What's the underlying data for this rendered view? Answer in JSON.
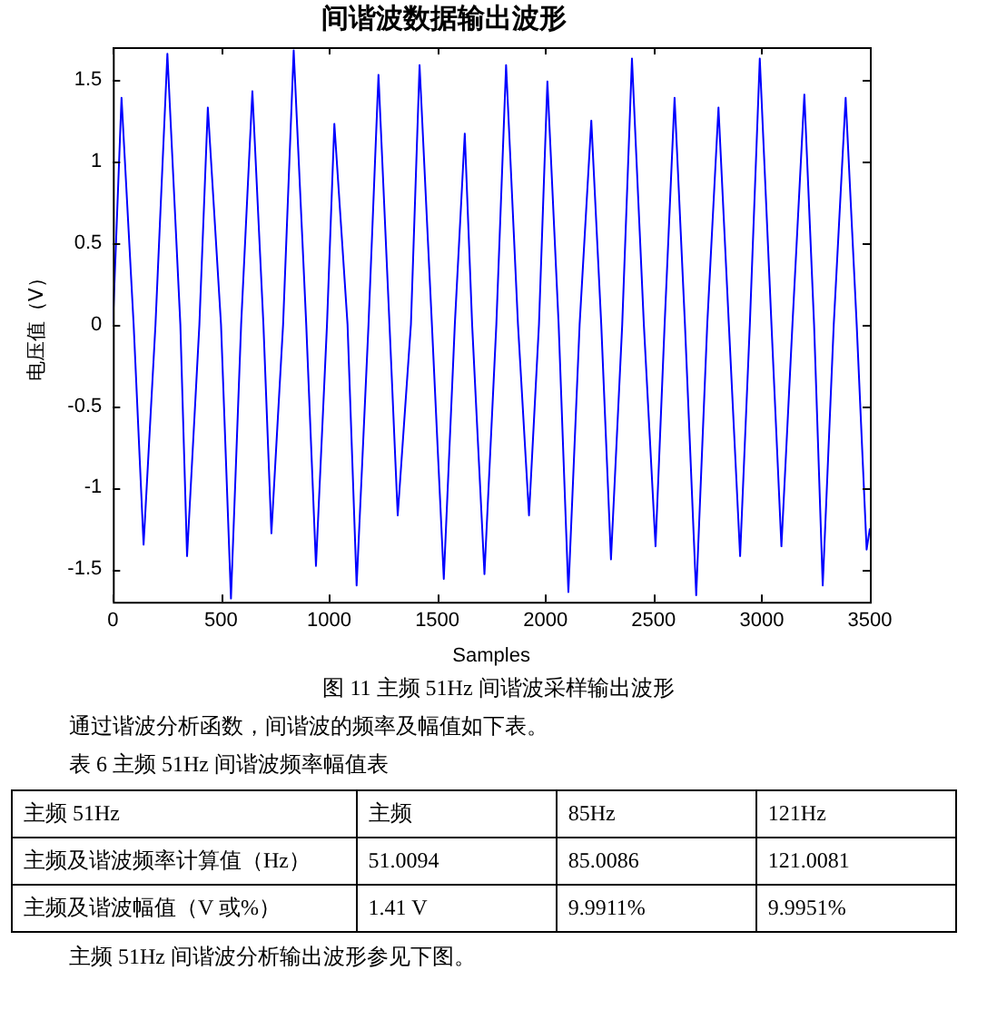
{
  "chart_data": {
    "type": "line",
    "title": "间谐波数据输出波形",
    "xlabel": "Samples",
    "ylabel": "电压值（V）",
    "xlim": [
      0,
      3500
    ],
    "xticks": [
      0,
      500,
      1000,
      1500,
      2000,
      2500,
      3000,
      3500
    ],
    "ylim": [
      -1.7,
      1.7
    ],
    "yticks": [
      -1.5,
      -1,
      -0.5,
      0,
      0.5,
      1,
      1.5
    ],
    "grid": false,
    "legend": false,
    "marker": "none",
    "line_style": "solid",
    "x": [
      0,
      40,
      96,
      142,
      197,
      252,
      312,
      343,
      400,
      439,
      500,
      546,
      593,
      645,
      696,
      733,
      787,
      836,
      894,
      939,
      990,
      1024,
      1085,
      1127,
      1182,
      1228,
      1279,
      1317,
      1378,
      1418,
      1475,
      1530,
      1581,
      1627,
      1661,
      1718,
      1773,
      1818,
      1873,
      1924,
      1970,
      2009,
      2061,
      2106,
      2158,
      2212,
      2258,
      2303,
      2355,
      2400,
      2455,
      2509,
      2551,
      2597,
      2645,
      2697,
      2748,
      2800,
      2848,
      2900,
      2945,
      2991,
      3045,
      3091,
      3142,
      3197,
      3242,
      3282,
      3333,
      3388,
      3439,
      3485,
      3500
    ],
    "series": [
      {
        "color": "#0000ff",
        "values": [
          0,
          1.39,
          0,
          -1.35,
          0,
          1.66,
          0,
          -1.42,
          0,
          1.33,
          0,
          -1.68,
          0,
          1.43,
          0,
          -1.28,
          0,
          1.68,
          0,
          -1.48,
          0,
          1.23,
          0,
          -1.6,
          0,
          1.53,
          0,
          -1.17,
          0,
          1.59,
          0,
          -1.56,
          0,
          1.17,
          0,
          -1.53,
          0,
          1.59,
          0,
          -1.17,
          0,
          1.49,
          0,
          -1.64,
          0,
          1.25,
          0,
          -1.44,
          0,
          1.63,
          0,
          -1.36,
          0,
          1.39,
          0,
          -1.66,
          0,
          1.33,
          0,
          -1.42,
          0,
          1.63,
          0,
          -1.36,
          0,
          1.41,
          0,
          -1.6,
          0,
          1.39,
          0,
          -1.38,
          -1.25
        ]
      }
    ],
    "annotations": [
      "图 11  主频 51Hz 间谐波采样输出波形",
      "通过谐波分析函数，间谐波的频率及幅值如下表。",
      "表 6  主频 51Hz 间谐波频率幅值表",
      "主频 51Hz",
      "主频",
      "85Hz",
      "121Hz",
      "主频及谐波频率计算值（Hz）",
      "51.0094",
      "85.0086",
      "121.0081",
      "主频及谐波幅值（V 或%）",
      "1.41 V",
      "9.9911%",
      "9.9951%",
      "主频 51Hz 间谐波分析输出波形参见下图。"
    ]
  }
}
